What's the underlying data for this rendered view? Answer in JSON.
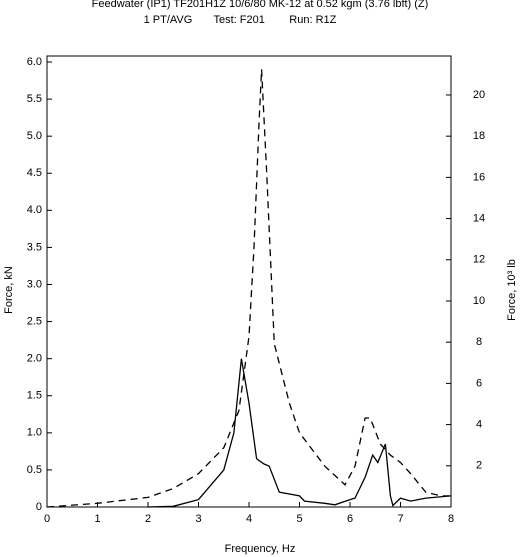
{
  "chart_data": {
    "type": "line",
    "title": "Feedwater (IP1) TF201H1Z     10/6/80   MK-12 at 0.52 kgm (3.76 lbft) (Z)",
    "subtitle": "1 PT/AVG       Test: F201        Run: R1Z",
    "xlabel": "Frequency, Hz",
    "ylabel": "Force, kN",
    "y2label": "Force, 10³ lb",
    "xlim": [
      0,
      8
    ],
    "xticks": [
      0,
      1,
      2,
      3,
      4,
      5,
      6,
      7,
      8
    ],
    "ylim": [
      0,
      6.0
    ],
    "yticks": [
      0,
      0.5,
      {
        "value": 1,
        "label": "1.0"
      },
      1.5,
      {
        "value": 2,
        "label": "2.0"
      },
      2.5,
      {
        "value": 3,
        "label": "3.0"
      },
      3.5,
      {
        "value": 4,
        "label": "4.0"
      },
      4.5,
      {
        "value": 5,
        "label": "5.0"
      },
      5.5,
      {
        "value": 6,
        "label": "6.0"
      }
    ],
    "y2lim": [
      0,
      21.6
    ],
    "y2ticks": [
      2,
      4,
      6,
      8,
      10,
      12,
      14,
      16,
      18,
      20
    ],
    "series": [
      {
        "color": "#000",
        "dash": "7,5",
        "x": [
          0,
          1,
          2,
          2.5,
          3,
          3.5,
          3.8,
          4.0,
          4.1,
          4.2,
          4.25,
          4.35,
          4.5,
          4.8,
          5.0,
          5.5,
          5.9,
          6.1,
          6.3,
          6.4,
          6.6,
          6.8,
          7.0,
          7.2,
          7.5,
          7.8,
          8.0
        ],
        "values": [
          0,
          0.05,
          0.13,
          0.25,
          0.45,
          0.8,
          1.3,
          2.3,
          3.5,
          5.2,
          5.9,
          4.5,
          2.2,
          1.4,
          1.0,
          0.55,
          0.3,
          0.55,
          1.2,
          1.2,
          0.85,
          0.7,
          0.6,
          0.45,
          0.2,
          0.15,
          0.15
        ]
      },
      {
        "color": "#000",
        "dash": "none",
        "x": [
          2.0,
          2.5,
          3.0,
          3.5,
          3.7,
          3.85,
          4.0,
          4.15,
          4.3,
          4.4,
          4.6,
          5.0,
          5.1,
          5.5,
          5.7,
          6.0,
          6.1,
          6.3,
          6.45,
          6.55,
          6.7,
          6.8,
          6.85,
          7.0,
          7.2,
          7.5,
          8.0
        ],
        "values": [
          0,
          0.01,
          0.1,
          0.5,
          1.0,
          2.0,
          1.4,
          0.65,
          0.58,
          0.55,
          0.2,
          0.15,
          0.08,
          0.05,
          0.03,
          0.1,
          0.12,
          0.4,
          0.7,
          0.6,
          0.85,
          0.15,
          0.02,
          0.12,
          0.08,
          0.12,
          0.15
        ]
      }
    ]
  }
}
